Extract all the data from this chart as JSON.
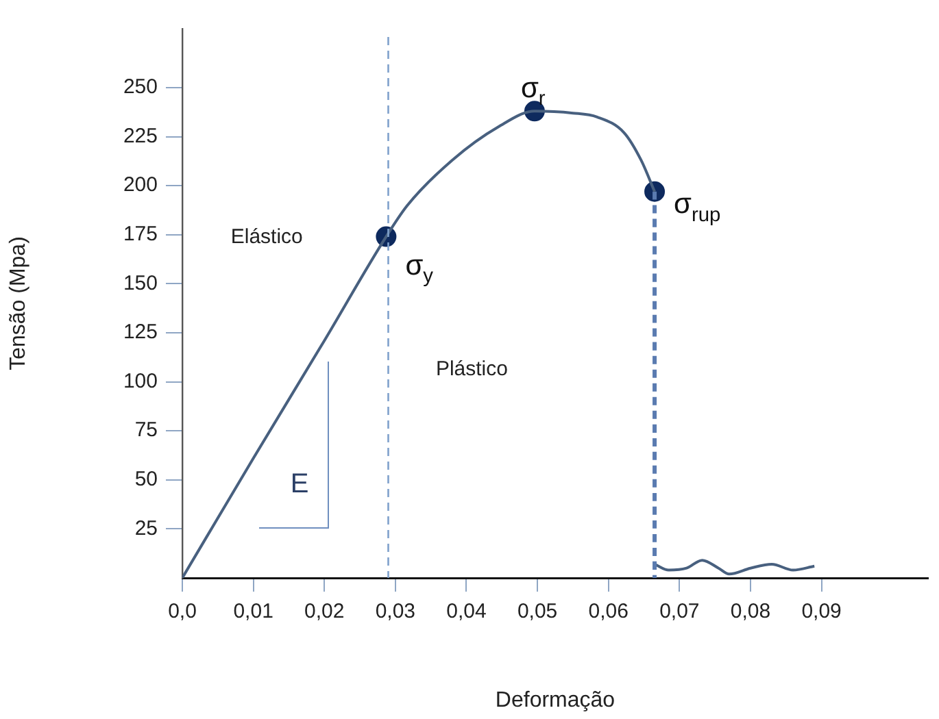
{
  "chart_data": {
    "type": "line",
    "xlabel": "Deformação",
    "ylabel": "Tensão (Mpa)",
    "xlim": [
      0,
      0.105
    ],
    "ylim": [
      0,
      280
    ],
    "xticks": [
      {
        "value": 0,
        "label": "0,0"
      },
      {
        "value": 0.01,
        "label": "0,01"
      },
      {
        "value": 0.02,
        "label": "0,02"
      },
      {
        "value": 0.03,
        "label": "0,03"
      },
      {
        "value": 0.04,
        "label": "0,04"
      },
      {
        "value": 0.05,
        "label": "0,05"
      },
      {
        "value": 0.06,
        "label": "0,06"
      },
      {
        "value": 0.07,
        "label": "0,07"
      },
      {
        "value": 0.08,
        "label": "0,08"
      },
      {
        "value": 0.09,
        "label": "0,09"
      }
    ],
    "yticks": [
      25,
      50,
      75,
      100,
      125,
      150,
      175,
      200,
      225,
      250
    ],
    "grid": false,
    "legend": false,
    "marker": "none",
    "series": [
      {
        "color": "#48607f",
        "x": [
          0,
          0.01,
          0.02,
          0.0287,
          0.0317,
          0.038,
          0.0445,
          0.0496,
          0.055,
          0.0584,
          0.0622,
          0.0646,
          0.0665
        ],
        "values": [
          0,
          61,
          121,
          174,
          190,
          213,
          230,
          238,
          237,
          235,
          227,
          213,
          197
        ]
      },
      {
        "color": "#5a7bb0",
        "line_style": "dashed",
        "x": [
          0.0665,
          0.0665
        ],
        "values": [
          197,
          0
        ]
      },
      {
        "color": "#48607f",
        "x": [
          0.0665,
          0.0685,
          0.071,
          0.0732,
          0.0755,
          0.077,
          0.08,
          0.083,
          0.086,
          0.089
        ],
        "values": [
          7,
          4,
          5,
          9,
          5,
          2,
          5,
          7,
          4,
          6
        ]
      },
      {
        "type": "scatter",
        "color": "#0e2a5e",
        "marker": "circle",
        "x": [
          0.0287,
          0.0496,
          0.0665
        ],
        "values": [
          174,
          238,
          197
        ]
      }
    ],
    "ref_lines": [
      {
        "axis": "x",
        "value": 0.029,
        "color": "#7fa1cc",
        "line_style": "dashed"
      }
    ],
    "annotations": [
      "Elástico",
      "Plástico",
      "E",
      {
        "text": "σ$_{y}$",
        "x": 0.0287,
        "y": 174
      },
      {
        "text": "σ$_{r}$",
        "x": 0.0496,
        "y": 238
      },
      {
        "text": "σ$_{rup}$",
        "x": 0.0665,
        "y": 197
      }
    ]
  }
}
